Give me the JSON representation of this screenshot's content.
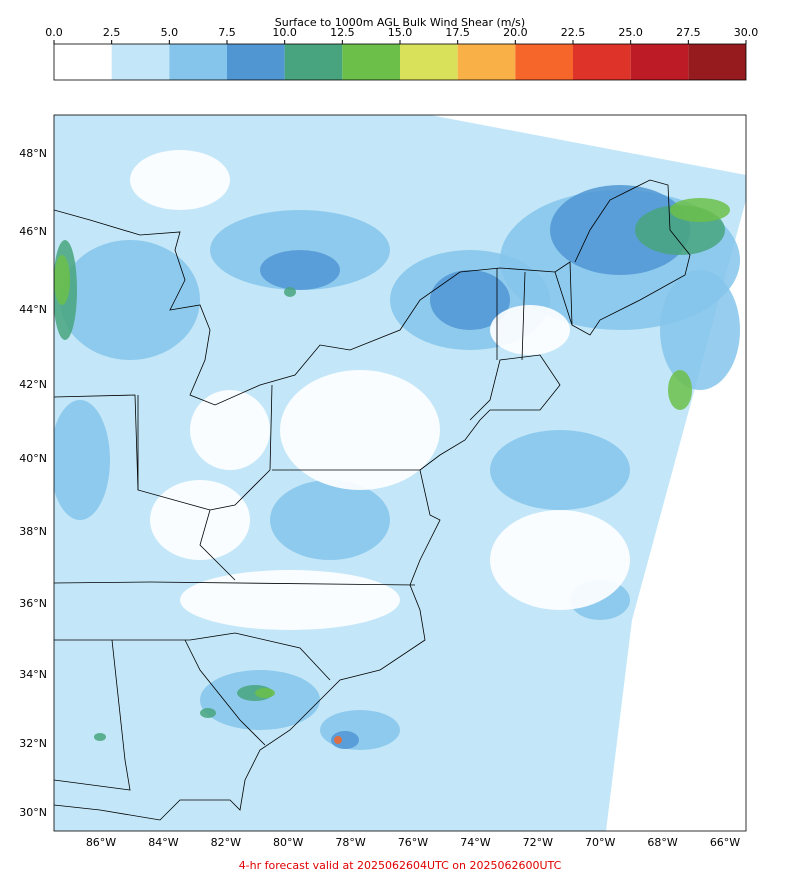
{
  "colorbar": {
    "title": "Surface to 1000m AGL Bulk Wind Shear (m/s)",
    "ticks": [
      {
        "value": 0,
        "label": "0.0"
      },
      2.5,
      {
        "value": 5,
        "label": "5.0"
      },
      7.5,
      {
        "value": 10,
        "label": "10.0"
      },
      12.5,
      {
        "value": 15,
        "label": "15.0"
      },
      17.5,
      {
        "value": 20,
        "label": "20.0"
      },
      22.5,
      {
        "value": 25,
        "label": "25.0"
      },
      27.5,
      {
        "value": 30,
        "label": "30.0"
      }
    ],
    "colors": [
      "#ffffff",
      "#c3e7f8",
      "#85c4eb",
      "#5096d3",
      "#48a47e",
      "#6cc04a",
      "#d9e05a",
      "#f9b046",
      "#f6652a",
      "#de3328",
      "#bd1b26",
      "#951b1e"
    ]
  },
  "map": {
    "lat_labels": [
      "48°N",
      "46°N",
      "44°N",
      "42°N",
      "40°N",
      "38°N",
      "36°N",
      "34°N",
      "32°N",
      "30°N"
    ],
    "lon_labels": [
      "86°W",
      "84°W",
      "82°W",
      "80°W",
      "78°W",
      "76°W",
      "74°W",
      "72°W",
      "70°W",
      "68°W",
      "66°W"
    ]
  },
  "footer": "4-hr forecast valid at 2025062604UTC on 2025062600UTC"
}
